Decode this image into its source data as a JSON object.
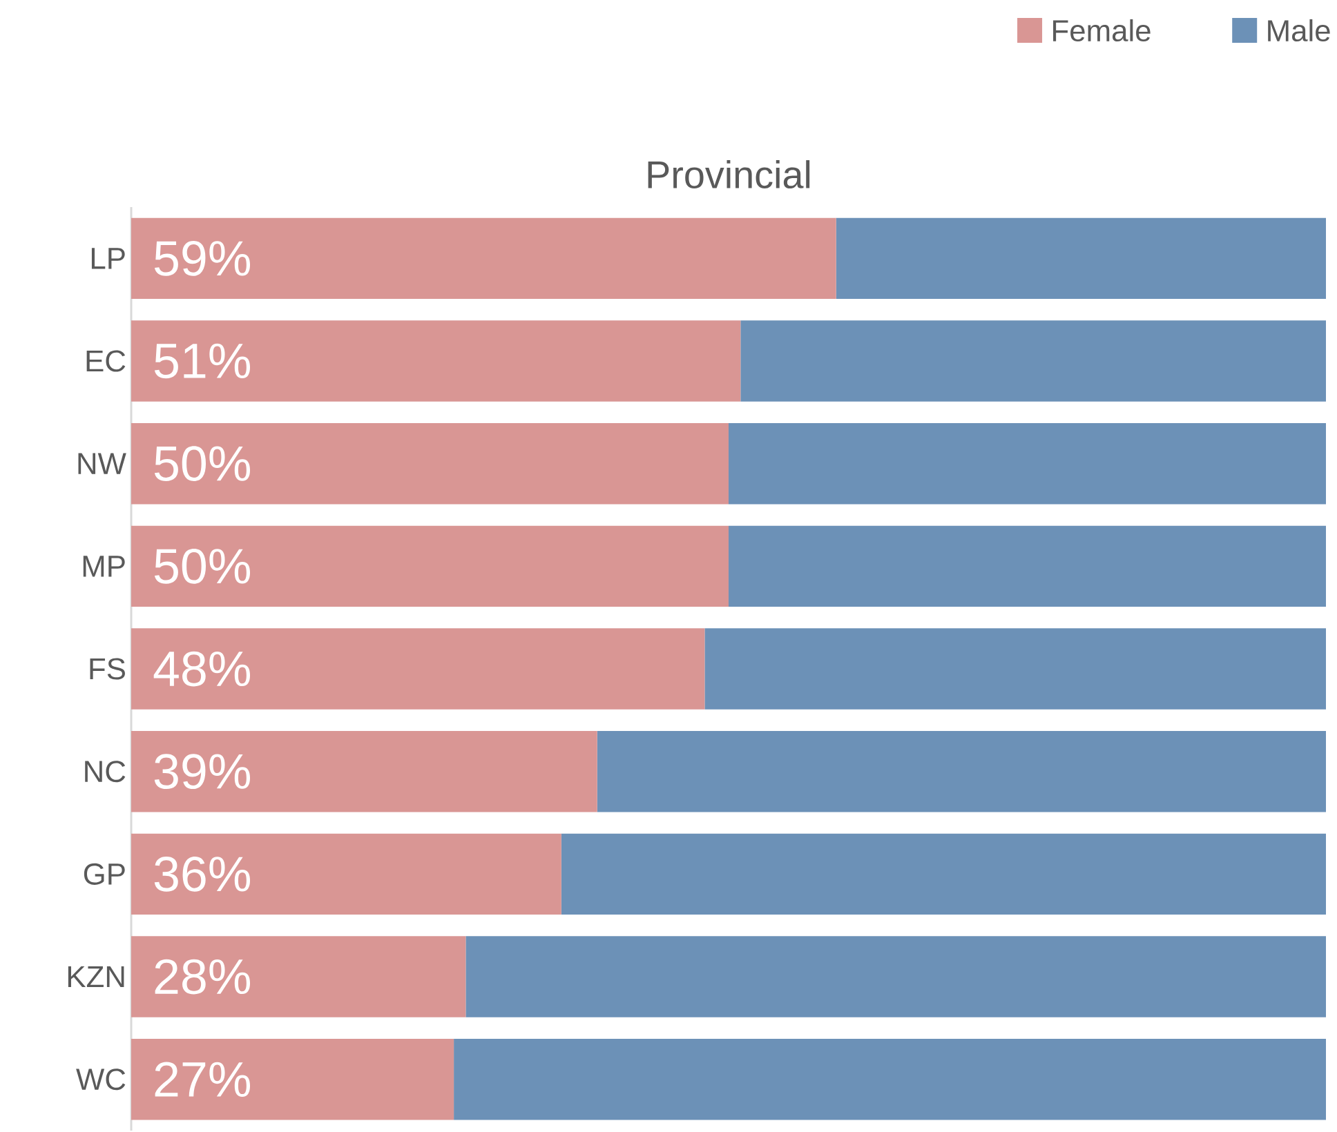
{
  "chart_data": {
    "type": "bar",
    "title": "Provincial",
    "orientation": "horizontal",
    "stacked": true,
    "categories": [
      "LP",
      "EC",
      "NW",
      "MP",
      "FS",
      "NC",
      "GP",
      "KZN",
      "WC"
    ],
    "series": [
      {
        "name": "Female",
        "color": "#d99694",
        "values": [
          59,
          51,
          50,
          50,
          48,
          39,
          36,
          28,
          27
        ],
        "value_labels": [
          "59%",
          "51%",
          "50%",
          "50%",
          "48%",
          "39%",
          "36%",
          "28%",
          "27%"
        ]
      },
      {
        "name": "Male",
        "color": "#6c91b7",
        "values": [
          41,
          49,
          50,
          50,
          52,
          61,
          64,
          72,
          73
        ]
      }
    ],
    "tick_labels": "y",
    "legend": "top right",
    "grid": false
  }
}
